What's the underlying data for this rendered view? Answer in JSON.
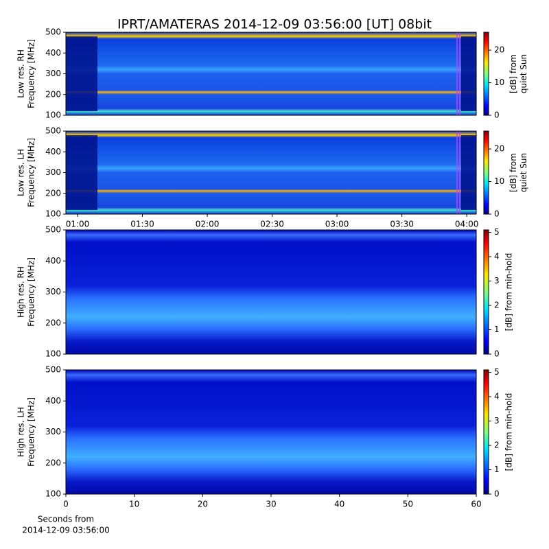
{
  "title": "IPRT/AMATERAS 2014-12-09 03:56:00 [UT]   08bit",
  "chart_data": [
    {
      "type": "heatmap",
      "ylabel": [
        "Low res. RH",
        "Frequency [MHz]"
      ],
      "ylim": [
        100,
        500
      ],
      "yticks": [
        100,
        200,
        300,
        400,
        500
      ],
      "xlim": [
        54.6,
        244.4
      ],
      "colorbar_label": [
        "[dB] from",
        "quiet Sun"
      ],
      "clim": [
        0,
        25.5
      ],
      "cticks": [
        0,
        10,
        20
      ],
      "colormap": "jet"
    },
    {
      "type": "heatmap",
      "ylabel": [
        "Low res. LH",
        "Frequency [MHz]"
      ],
      "ylim": [
        100,
        500
      ],
      "yticks": [
        100,
        200,
        300,
        400,
        500
      ],
      "xlim": [
        54.6,
        244.4
      ],
      "xticks": [
        {
          "value": 60,
          "label": "01:00"
        },
        {
          "value": 90,
          "label": "01:30"
        },
        {
          "value": 120,
          "label": "02:00"
        },
        {
          "value": 150,
          "label": "02:30"
        },
        {
          "value": 180,
          "label": "03:00"
        },
        {
          "value": 210,
          "label": "03:30"
        },
        {
          "value": 240,
          "label": "04:00"
        }
      ],
      "colorbar_label": [
        "[dB] from",
        "quiet Sun"
      ],
      "clim": [
        0,
        25.5
      ],
      "cticks": [
        0,
        10,
        20
      ],
      "colormap": "jet"
    },
    {
      "type": "heatmap",
      "ylabel": [
        "High res. RH",
        "Frequency [MHz]"
      ],
      "ylim": [
        100,
        500
      ],
      "yticks": [
        100,
        200,
        300,
        400,
        500
      ],
      "xlim": [
        0,
        60
      ],
      "colorbar_label": [
        "[dB] from min-hold"
      ],
      "clim": [
        0,
        5.1
      ],
      "cticks": [
        0,
        1,
        2,
        3,
        4,
        5
      ],
      "colormap": "jet"
    },
    {
      "type": "heatmap",
      "ylabel": [
        "High res. LH",
        "Frequency [MHz]"
      ],
      "ylim": [
        100,
        500
      ],
      "yticks": [
        100,
        200,
        300,
        400,
        500
      ],
      "xlim": [
        0,
        60
      ],
      "xticks": [
        0,
        10,
        20,
        30,
        40,
        50,
        60
      ],
      "xlabel": [
        "Seconds from",
        "2014-12-09 03:56:00"
      ],
      "colorbar_label": [
        "[dB] from min-hold"
      ],
      "clim": [
        0,
        5.1
      ],
      "cticks": [
        0,
        1,
        2,
        3,
        4,
        5
      ],
      "colormap": "jet"
    }
  ]
}
